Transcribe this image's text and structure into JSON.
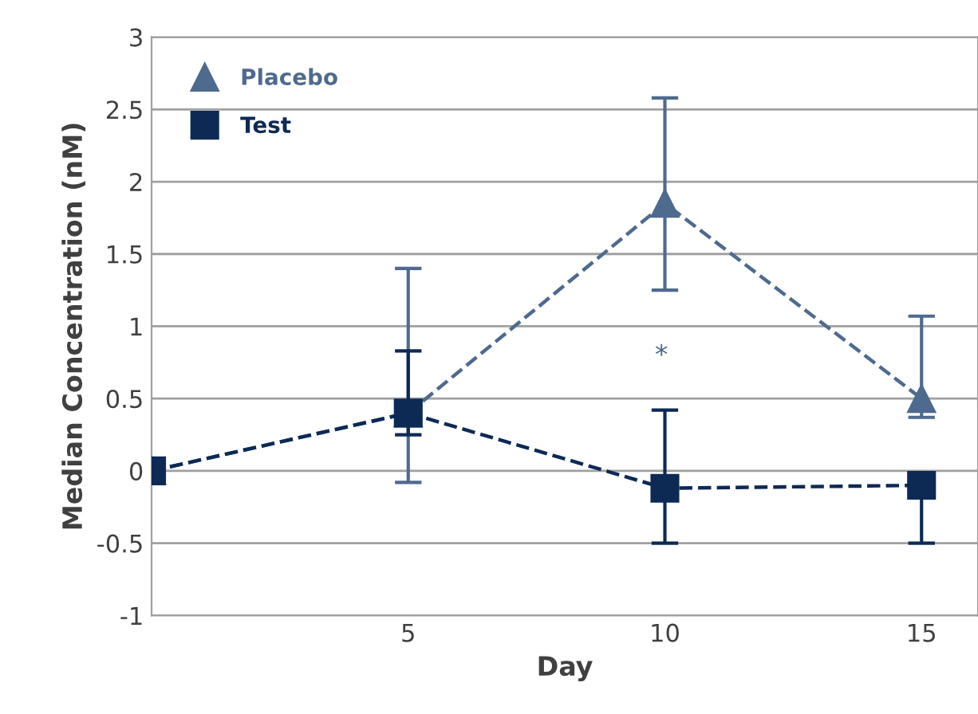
{
  "chart_data": {
    "type": "line",
    "xlabel": "Day",
    "ylabel": "Median Concentration (nM)",
    "x": [
      0,
      5,
      10,
      15
    ],
    "series": [
      {
        "name": "Placebo",
        "color": "#4f6a8f",
        "marker": "triangle",
        "values": [
          0,
          0.4,
          1.85,
          0.5
        ],
        "errors": [
          null,
          [
            -0.08,
            1.4
          ],
          [
            1.25,
            2.58
          ],
          [
            0.37,
            1.07
          ]
        ]
      },
      {
        "name": "Test",
        "color": "#0d2a55",
        "marker": "square",
        "values": [
          0,
          0.4,
          -0.12,
          -0.1
        ],
        "errors": [
          null,
          [
            0.25,
            0.83
          ],
          [
            -0.5,
            0.42
          ],
          [
            -0.5,
            -0.1
          ]
        ]
      }
    ],
    "xlim": [
      0,
      16.1
    ],
    "xticks": [
      5,
      10,
      15
    ],
    "ylim": [
      -1,
      3
    ],
    "yticks": [
      -1,
      -0.5,
      0,
      0.5,
      1,
      1.5,
      2,
      2.5,
      3
    ],
    "grid": "y",
    "legend": "top left",
    "line_style": "dashed",
    "annotations": [
      "*"
    ]
  }
}
